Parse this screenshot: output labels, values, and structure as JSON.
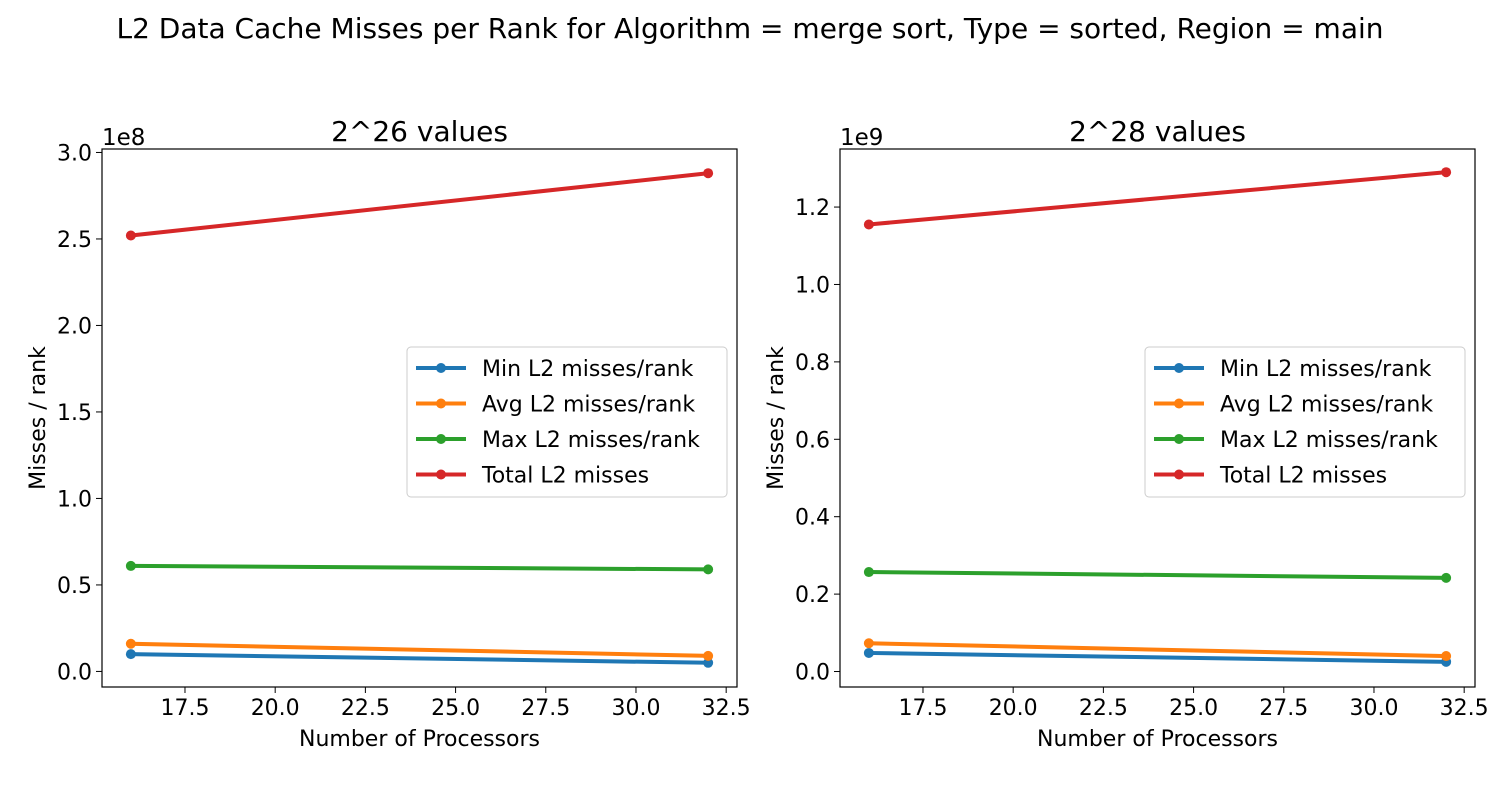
{
  "figure": {
    "suptitle": "L2 Data Cache Misses per Rank for Algorithm = merge sort, Type = sorted, Region = main"
  },
  "chart_data": [
    {
      "type": "line",
      "title": "2^26 values",
      "xlabel": "Number of Processors",
      "ylabel": "Misses / rank",
      "offset_text": "1e8",
      "x": [
        16,
        32
      ],
      "xlim": [
        15.2,
        32.8
      ],
      "xticks": [
        17.5,
        20.0,
        22.5,
        25.0,
        27.5,
        30.0,
        32.5
      ],
      "xtick_labels": [
        "17.5",
        "20.0",
        "22.5",
        "25.0",
        "27.5",
        "30.0",
        "32.5"
      ],
      "ylim": [
        -0.09,
        3.02
      ],
      "yticks": [
        0.0,
        0.5,
        1.0,
        1.5,
        2.0,
        2.5,
        3.0
      ],
      "ytick_labels": [
        "0.0",
        "0.5",
        "1.0",
        "1.5",
        "2.0",
        "2.5",
        "3.0"
      ],
      "y_unit_multiplier": 100000000,
      "grid": false,
      "legend_position": "center-right",
      "series": [
        {
          "name": "Min L2 misses/rank",
          "color": "#1f77b4",
          "values": [
            0.1,
            0.05
          ]
        },
        {
          "name": "Avg L2 misses/rank",
          "color": "#ff7f0e",
          "values": [
            0.16,
            0.09
          ]
        },
        {
          "name": "Max L2 misses/rank",
          "color": "#2ca02c",
          "values": [
            0.61,
            0.59
          ]
        },
        {
          "name": "Total L2 misses",
          "color": "#d62728",
          "values": [
            2.52,
            2.88
          ]
        }
      ]
    },
    {
      "type": "line",
      "title": "2^28 values",
      "xlabel": "Number of Processors",
      "ylabel": "Misses / rank",
      "offset_text": "1e9",
      "x": [
        16,
        32
      ],
      "xlim": [
        15.2,
        32.8
      ],
      "xticks": [
        17.5,
        20.0,
        22.5,
        25.0,
        27.5,
        30.0,
        32.5
      ],
      "xtick_labels": [
        "17.5",
        "20.0",
        "22.5",
        "25.0",
        "27.5",
        "30.0",
        "32.5"
      ],
      "ylim": [
        -0.04,
        1.35
      ],
      "yticks": [
        0.0,
        0.2,
        0.4,
        0.6,
        0.8,
        1.0,
        1.2
      ],
      "ytick_labels": [
        "0.0",
        "0.2",
        "0.4",
        "0.6",
        "0.8",
        "1.0",
        "1.2"
      ],
      "y_unit_multiplier": 1000000000,
      "grid": false,
      "legend_position": "center-right",
      "series": [
        {
          "name": "Min L2 misses/rank",
          "color": "#1f77b4",
          "values": [
            0.048,
            0.025
          ]
        },
        {
          "name": "Avg L2 misses/rank",
          "color": "#ff7f0e",
          "values": [
            0.073,
            0.04
          ]
        },
        {
          "name": "Max L2 misses/rank",
          "color": "#2ca02c",
          "values": [
            0.257,
            0.242
          ]
        },
        {
          "name": "Total L2 misses",
          "color": "#d62728",
          "values": [
            1.155,
            1.29
          ]
        }
      ]
    }
  ]
}
